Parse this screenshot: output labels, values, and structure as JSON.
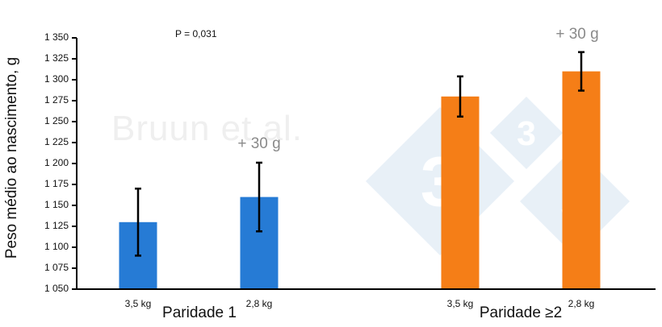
{
  "chart_data": {
    "type": "bar",
    "title": "",
    "xlabel": "",
    "ylabel": "Peso médio ao nascimento, g",
    "ylim": [
      1050,
      1350
    ],
    "yticks": [
      1050,
      1075,
      1100,
      1125,
      1150,
      1175,
      1200,
      1225,
      1250,
      1275,
      1300,
      1325,
      1350
    ],
    "ytick_labels": [
      "1 050",
      "1 075",
      "1 100",
      "1 125",
      "1 150",
      "1 175",
      "1 200",
      "1 225",
      "1 250",
      "1 275",
      "1 300",
      "1 325",
      "1 350"
    ],
    "grid": false,
    "legend": null,
    "groups": [
      {
        "label": "Paridade 1",
        "categories": [
          "3,5 kg",
          "2,8 kg"
        ]
      },
      {
        "label": "Paridade ≥2",
        "categories": [
          "3,5 kg",
          "2,8 kg"
        ]
      }
    ],
    "categories": [
      "3,5 kg",
      "2,8 kg",
      "3,5 kg",
      "2,8 kg"
    ],
    "values": [
      1130,
      1160,
      1280,
      1310
    ],
    "error_bars": [
      40,
      41,
      24,
      23
    ],
    "bar_colors": [
      "#1f77d4",
      "#1f77d4",
      "#f57a10",
      "#f57a10"
    ],
    "annotations": [
      {
        "text": "P = 0,031",
        "position": "top-left"
      },
      {
        "text": "+ 30 g",
        "above_bar": 1
      },
      {
        "text": "+ 30 g",
        "above_bar": 3
      }
    ],
    "watermark": "Bruun et al."
  },
  "colors": {
    "parity1": "#1f77d4",
    "parity2": "#f57a10",
    "annotation": "#8a8a8a",
    "watermark": "#efefef",
    "logo": "#e8f0f7"
  },
  "labels": {
    "p_value": "P = 0,031",
    "diff_1": "+ 30 g",
    "diff_2": "+ 30 g",
    "watermark": "Bruun et al.",
    "logo_digit": "3"
  }
}
